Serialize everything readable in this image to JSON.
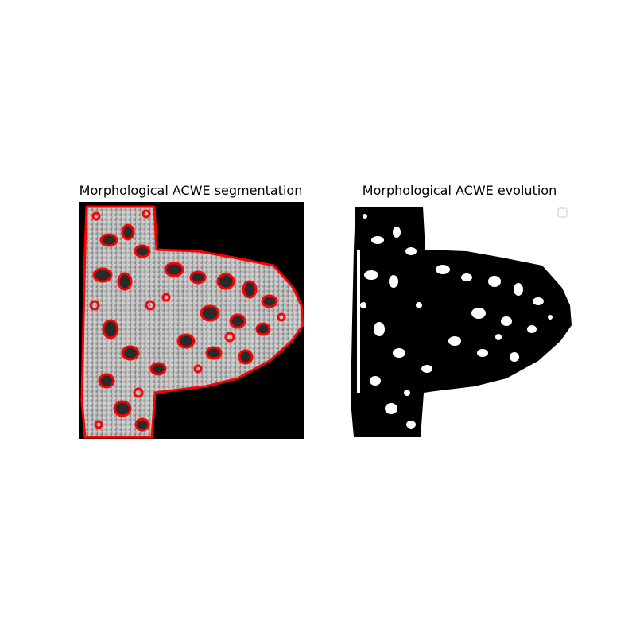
{
  "figure": {
    "left_title": "Morphological ACWE segmentation",
    "right_title": "Morphological ACWE evolution"
  },
  "colors": {
    "contour": "#ff0000",
    "background_dark": "#000000",
    "tissue_light": "#c8c8c8",
    "mask_fill": "#000000",
    "legend_border": "#cccccc"
  },
  "icons": {
    "legend": "empty-legend-box"
  }
}
